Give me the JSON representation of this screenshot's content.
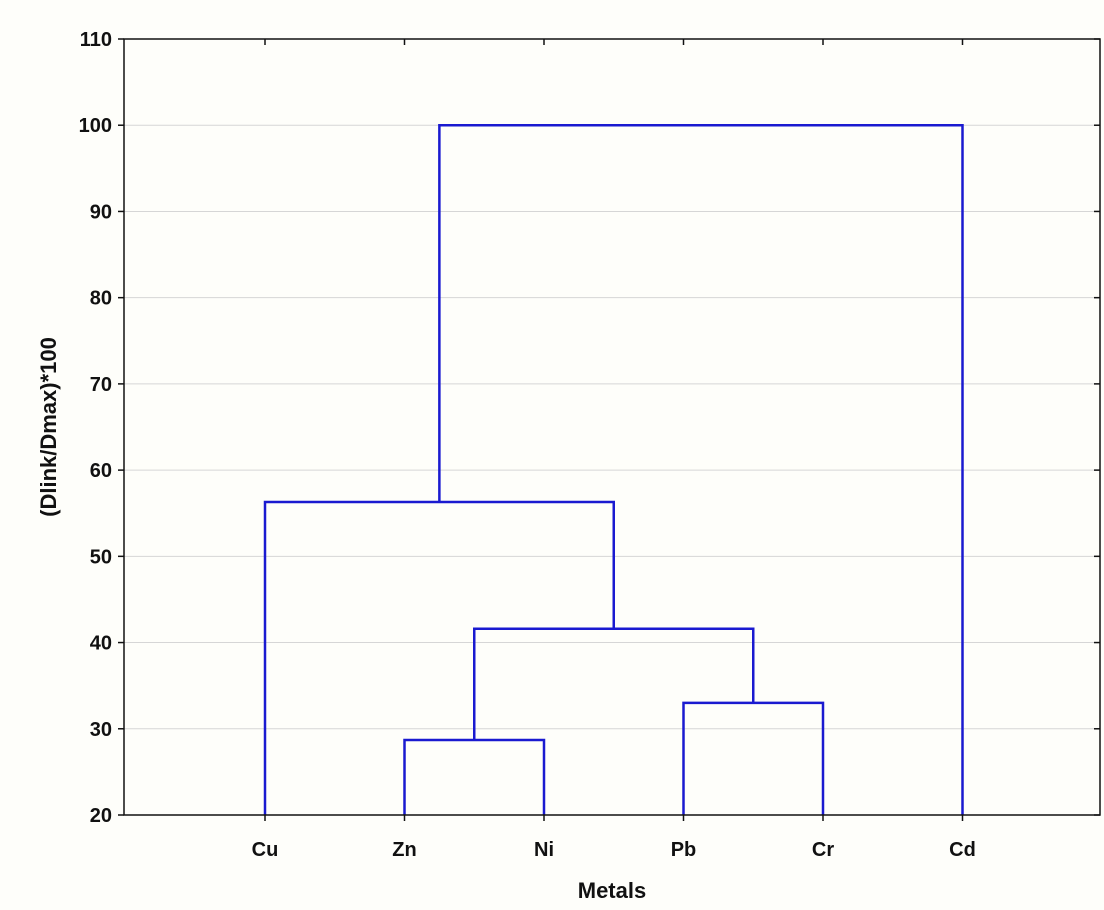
{
  "chart_data": {
    "type": "dendrogram",
    "title": "",
    "xlabel": "Metals",
    "ylabel": "(Dlink/Dmax)*100",
    "ylim": [
      20,
      110
    ],
    "yticks": [
      20,
      30,
      40,
      50,
      60,
      70,
      80,
      90,
      100,
      110
    ],
    "grid": true,
    "leaves": [
      "Cu",
      "Zn",
      "Ni",
      "Pb",
      "Cr",
      "Cd"
    ],
    "merges": [
      {
        "left": "Zn",
        "right": "Ni",
        "height": 28.7
      },
      {
        "left": "Pb",
        "right": "Cr",
        "height": 33.0
      },
      {
        "left": "Zn+Ni",
        "right": "Pb+Cr",
        "height": 41.6
      },
      {
        "left": "Cu",
        "right": "Zn+Ni+Pb+Cr",
        "height": 56.3
      },
      {
        "left": "Cu+Zn+Ni+Pb+Cr",
        "right": "Cd",
        "height": 100.0
      }
    ],
    "colors": {
      "link": "#1a1ad0",
      "grid": "#d6d6d6",
      "axis": "#111111"
    }
  }
}
